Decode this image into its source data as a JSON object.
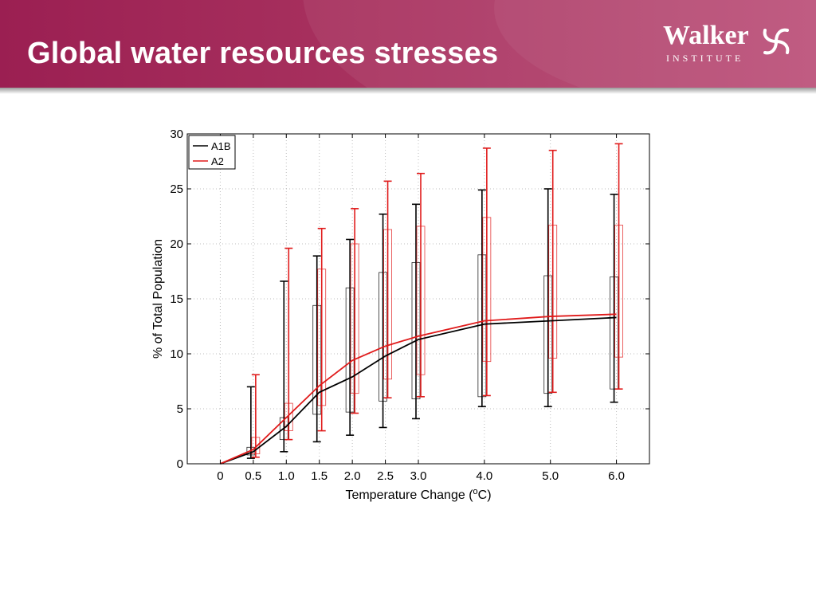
{
  "slide": {
    "title": "Global water resources stresses",
    "logo_name": "Walker",
    "logo_subtitle": "INSTITUTE",
    "logo_icon": "swirl-logo-icon",
    "banner_color": "#a8325f"
  },
  "chart_data": {
    "type": "box",
    "title": "",
    "xlabel_main": "Temperature Change (",
    "xlabel_sup": "o",
    "xlabel_end": "C)",
    "ylabel": "% of Total Population",
    "ylim": [
      0,
      30
    ],
    "xlim": [
      -0.5,
      6.5
    ],
    "yticks": [
      0,
      5,
      10,
      15,
      20,
      25,
      30
    ],
    "xticks": [
      0,
      0.5,
      1.0,
      1.5,
      2.0,
      2.5,
      3.0,
      4.0,
      5.0,
      6.0
    ],
    "xtick_labels": [
      "0",
      "0.5",
      "1.0",
      "1.5",
      "2.0",
      "2.5",
      "3.0",
      "4.0",
      "5.0",
      "6.0"
    ],
    "grid": true,
    "legend_position": "top-left",
    "series": [
      {
        "name": "A1B",
        "color": "#000000",
        "line_x": [
          0,
          0.5,
          1.0,
          1.5,
          2.0,
          2.5,
          3.0,
          4.0,
          5.0,
          6.0
        ],
        "line_y": [
          0,
          1.1,
          3.4,
          6.5,
          7.9,
          9.8,
          11.3,
          12.7,
          13.0,
          13.3
        ],
        "boxes": [
          {
            "x": 0.5,
            "lo": 0.5,
            "q1": 0.8,
            "q3": 1.5,
            "hi": 7.0
          },
          {
            "x": 1.0,
            "lo": 1.1,
            "q1": 2.2,
            "q3": 4.2,
            "hi": 16.6
          },
          {
            "x": 1.5,
            "lo": 2.0,
            "q1": 4.5,
            "q3": 14.4,
            "hi": 18.9
          },
          {
            "x": 2.0,
            "lo": 2.6,
            "q1": 4.7,
            "q3": 16.0,
            "hi": 20.4
          },
          {
            "x": 2.5,
            "lo": 3.3,
            "q1": 5.7,
            "q3": 17.4,
            "hi": 22.7
          },
          {
            "x": 3.0,
            "lo": 4.1,
            "q1": 5.9,
            "q3": 18.3,
            "hi": 23.6
          },
          {
            "x": 4.0,
            "lo": 5.2,
            "q1": 6.1,
            "q3": 19.0,
            "hi": 24.9
          },
          {
            "x": 5.0,
            "lo": 5.2,
            "q1": 6.4,
            "q3": 17.1,
            "hi": 25.0
          },
          {
            "x": 6.0,
            "lo": 5.6,
            "q1": 6.8,
            "q3": 17.0,
            "hi": 24.5
          }
        ]
      },
      {
        "name": "A2",
        "color": "#e01b1b",
        "line_x": [
          0,
          0.5,
          1.0,
          1.5,
          2.0,
          2.5,
          3.0,
          4.0,
          5.0,
          6.0
        ],
        "line_y": [
          0,
          1.3,
          4.2,
          7.1,
          9.4,
          10.7,
          11.6,
          13.0,
          13.4,
          13.6
        ],
        "boxes": [
          {
            "x": 0.5,
            "lo": 0.6,
            "q1": 0.9,
            "q3": 2.4,
            "hi": 8.1
          },
          {
            "x": 1.0,
            "lo": 2.2,
            "q1": 3.0,
            "q3": 5.5,
            "hi": 19.6
          },
          {
            "x": 1.5,
            "lo": 3.0,
            "q1": 5.3,
            "q3": 17.7,
            "hi": 21.4
          },
          {
            "x": 2.0,
            "lo": 4.6,
            "q1": 6.4,
            "q3": 20.0,
            "hi": 23.2
          },
          {
            "x": 2.5,
            "lo": 6.0,
            "q1": 7.7,
            "q3": 21.3,
            "hi": 25.7
          },
          {
            "x": 3.0,
            "lo": 6.1,
            "q1": 8.1,
            "q3": 21.6,
            "hi": 26.4
          },
          {
            "x": 4.0,
            "lo": 6.2,
            "q1": 9.3,
            "q3": 22.4,
            "hi": 28.7
          },
          {
            "x": 5.0,
            "lo": 6.5,
            "q1": 9.6,
            "q3": 21.7,
            "hi": 28.5
          },
          {
            "x": 6.0,
            "lo": 6.8,
            "q1": 9.7,
            "q3": 21.7,
            "hi": 29.1
          }
        ]
      }
    ]
  }
}
